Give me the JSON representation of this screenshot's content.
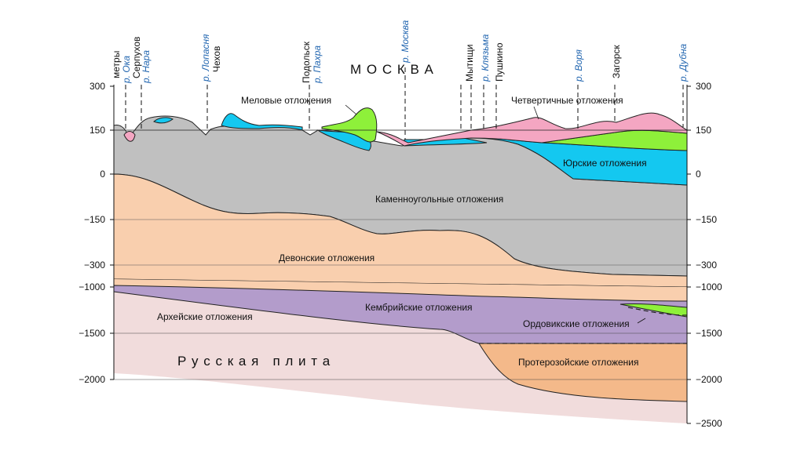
{
  "units_label": "метры",
  "left_axis_ticks": [
    "300",
    "150",
    "0",
    "−150",
    "−300",
    "−1000",
    "−1500",
    "−2000"
  ],
  "right_axis_ticks": [
    "300",
    "150",
    "0",
    "−150",
    "−300",
    "−1000",
    "−1500",
    "−2000",
    "−2500"
  ],
  "places": [
    {
      "text": "Серпухов",
      "river": false
    },
    {
      "text": "Чехов",
      "river": false
    },
    {
      "text": "Подольск",
      "river": false
    },
    {
      "text": "Мытищи",
      "river": false
    },
    {
      "text": "Пушкино",
      "river": false
    },
    {
      "text": "Загорск",
      "river": false
    }
  ],
  "rivers": [
    {
      "text": "р. Ока"
    },
    {
      "text": "р. Нара"
    },
    {
      "text": "р. Лопасня"
    },
    {
      "text": "р. Пахра"
    },
    {
      "text": "р. Москва"
    },
    {
      "text": "р. Клязьма"
    },
    {
      "text": "р. Воря"
    },
    {
      "text": "р. Дубна"
    }
  ],
  "city_label": "М О С К В А",
  "plate_label": "Р у с с к а я   п л и т а",
  "layers": {
    "cretaceous": "Меловые отложения",
    "quaternary": "Четвертичные отложения",
    "jurassic": "Юрские отложения",
    "carboniferous": "Каменноугольные отложения",
    "devonian": "Девонские отложения",
    "cambrian": "Кембрийские отложения",
    "archean": "Архейские отложения",
    "ordovician": "Ордовикские отложения",
    "proterozoic": "Протерозойские отложения"
  },
  "colors": {
    "gray": "#c0c0c0",
    "cyan": "#14c8f0",
    "pink": "#f4a6c2",
    "green": "#8ef03a",
    "peach": "#f9cfae",
    "purple": "#b39ccb",
    "lightpink": "#f1dcdc",
    "orange": "#f4b98a"
  }
}
